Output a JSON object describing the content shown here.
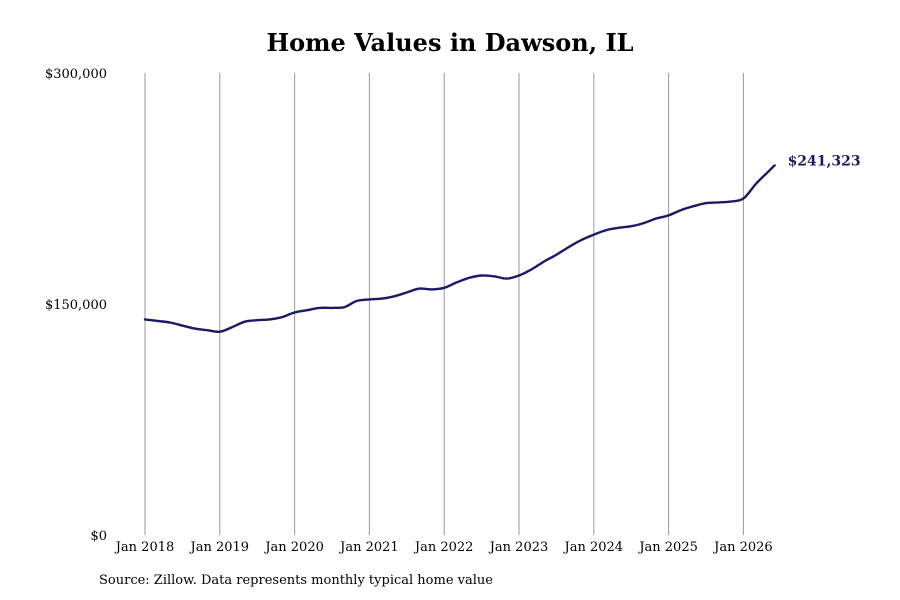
{
  "chart_data": {
    "type": "line",
    "title": "Home Values in Dawson, IL",
    "source": "Source: Zillow. Data represents monthly typical home value",
    "xlabel": "",
    "ylabel": "",
    "x_tick_labels": [
      "Jan 2018",
      "Jan 2019",
      "Jan 2020",
      "Jan 2021",
      "Jan 2022",
      "Jan 2023",
      "Jan 2024",
      "Jan 2025",
      "Jan 2026"
    ],
    "y_tick_labels": [
      "$300,000",
      "$150,000",
      "$0"
    ],
    "y_ticks": [
      300000,
      150000,
      0
    ],
    "ylim": [
      0,
      300000
    ],
    "xlim": [
      "2018-01",
      "2026-06"
    ],
    "grid": "vertical lines at each January",
    "line_color": "#1a1a66",
    "end_label": "$241,323",
    "series": [
      {
        "x": [
          "2018-01",
          "2018-03",
          "2018-05",
          "2018-07",
          "2018-09",
          "2018-11",
          "2019-01",
          "2019-03",
          "2019-05",
          "2019-07",
          "2019-09",
          "2019-11",
          "2020-01",
          "2020-03",
          "2020-05",
          "2020-07",
          "2020-09",
          "2020-11",
          "2021-01",
          "2021-03",
          "2021-05",
          "2021-07",
          "2021-09",
          "2021-11",
          "2022-01",
          "2022-03",
          "2022-05",
          "2022-07",
          "2022-09",
          "2022-11",
          "2023-01",
          "2023-03",
          "2023-05",
          "2023-07",
          "2023-09",
          "2023-11",
          "2024-01",
          "2024-03",
          "2024-05",
          "2024-07",
          "2024-09",
          "2024-11",
          "2025-01",
          "2025-03",
          "2025-05",
          "2025-07",
          "2025-09",
          "2025-11",
          "2026-01",
          "2026-03",
          "2026-05",
          "2026-06"
        ],
        "values": [
          140000,
          139000,
          138000,
          136000,
          134000,
          133000,
          132000,
          135000,
          138500,
          139500,
          140000,
          141500,
          144500,
          146000,
          147500,
          147500,
          148000,
          152000,
          153000,
          153500,
          155000,
          157500,
          160000,
          159500,
          160500,
          164000,
          167000,
          168500,
          168000,
          166500,
          168500,
          172500,
          177500,
          182000,
          187000,
          191500,
          195000,
          198000,
          199500,
          200500,
          202500,
          205500,
          207500,
          211000,
          213500,
          215500,
          216000,
          216500,
          218500,
          228000,
          236000,
          240000
        ]
      }
    ]
  }
}
